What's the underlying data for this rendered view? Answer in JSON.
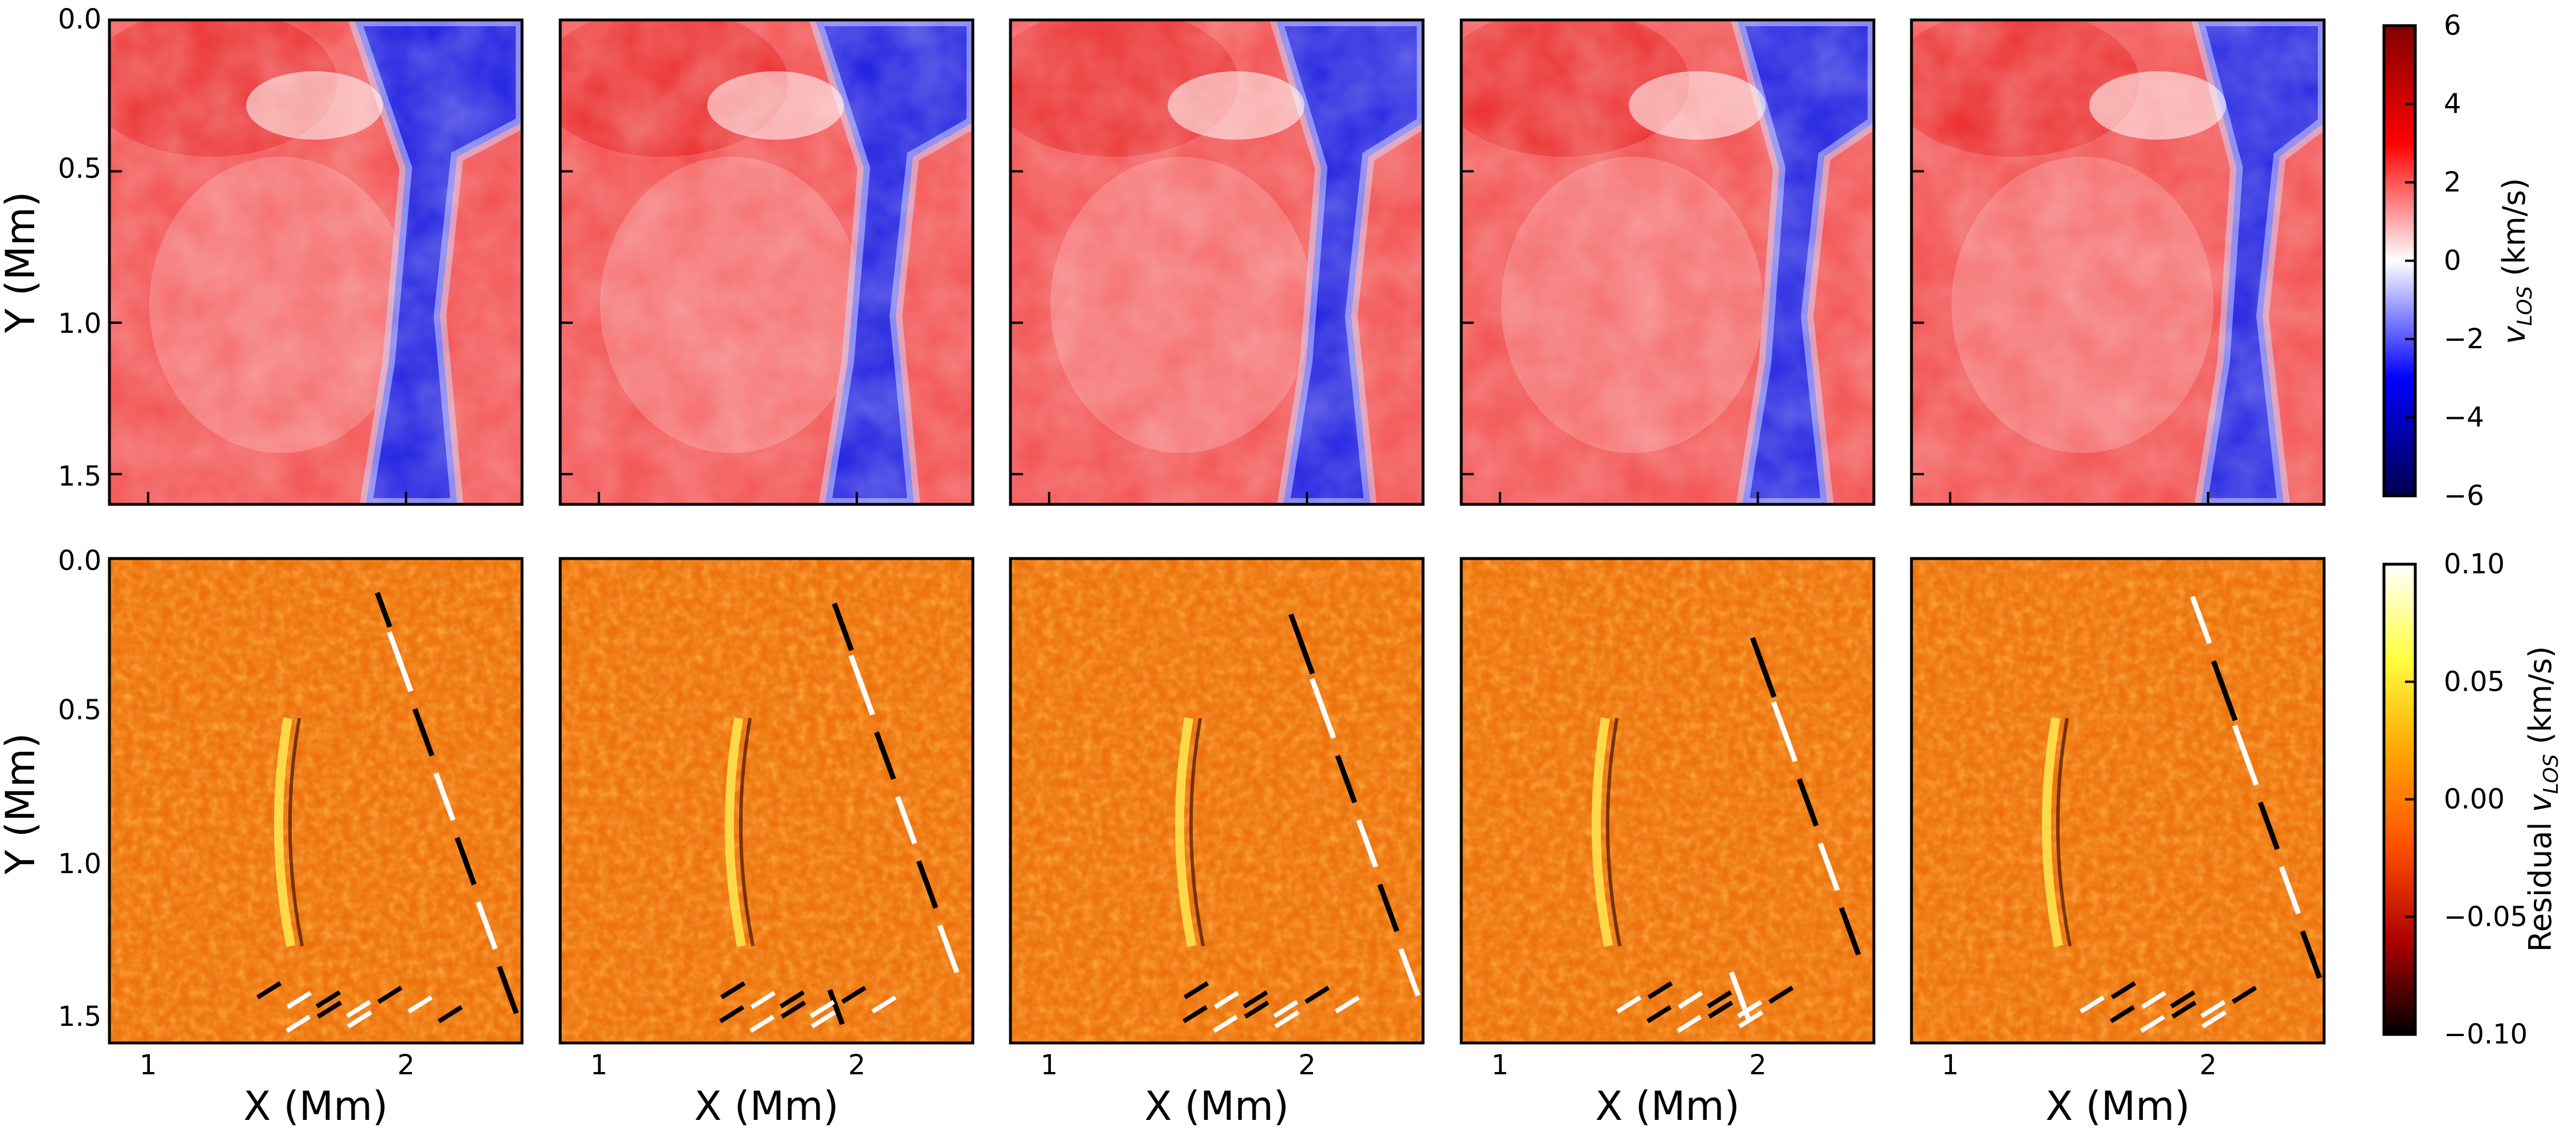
{
  "chart_data": [
    {
      "type": "heatmap",
      "row": "top",
      "panels": 5,
      "description_values": "line-of-sight velocity maps (5 time/inversion panels)",
      "xlabel": "",
      "ylabel": "Y (Mm)",
      "xlim": [
        0.85,
        2.45
      ],
      "ylim": [
        1.6,
        0.0
      ],
      "xticks": [
        1,
        2
      ],
      "yticks": [
        0.0,
        0.5,
        1.0,
        1.5
      ],
      "ytick_labels": [
        "0.0",
        "0.5",
        "1.0",
        "1.5"
      ],
      "colorbar": {
        "label_prefix": "",
        "label_var": "v",
        "label_sub": "LOS",
        "label_unit": "(km/s)",
        "range": [
          -6,
          6
        ],
        "ticks": [
          6,
          4,
          2,
          0,
          -2,
          -4,
          -6
        ],
        "tick_labels": [
          "6",
          "4",
          "2",
          "0",
          "−2",
          "−4",
          "−6"
        ],
        "colormap": "seismic",
        "colors": [
          "#00004c",
          "#0000ff",
          "#ffffff",
          "#ff0000",
          "#800000"
        ]
      },
      "features": {
        "left_region": "positive (red, ~+2 to +3 km/s)",
        "downflow_lane": "negative (blue, ~-4 to -6 km/s) near X 1.9-2.2 Mm"
      }
    },
    {
      "type": "heatmap",
      "row": "bottom",
      "panels": 5,
      "xlabel": "X (Mm)",
      "ylabel": "Y (Mm)",
      "xlim": [
        0.85,
        2.45
      ],
      "ylim": [
        1.6,
        0.0
      ],
      "xticks": [
        1,
        2
      ],
      "xtick_labels": [
        "1",
        "2"
      ],
      "yticks": [
        0.0,
        0.5,
        1.0,
        1.5
      ],
      "ytick_labels": [
        "0.0",
        "0.5",
        "1.0",
        "1.5"
      ],
      "colorbar": {
        "label_prefix": "Residual",
        "label_var": "v",
        "label_sub": "LOS",
        "label_unit": "(km/s)",
        "range": [
          -0.1,
          0.1
        ],
        "ticks": [
          0.1,
          0.05,
          0.0,
          -0.05,
          -0.1
        ],
        "tick_labels": [
          "0.10",
          "0.05",
          "0.00",
          "−0.05",
          "−0.10"
        ],
        "colormap": "hot",
        "colors": [
          "#000000",
          "#b00000",
          "#ff5000",
          "#ffa500",
          "#ffff40",
          "#ffffff"
        ]
      },
      "features": {
        "background": "near zero (orange)",
        "arc_feature": "residual arc near X ~1.5 Mm, Y 0.5-1.1 Mm",
        "edges": "high-contrast residual streaks near X ~2.0-2.4 Mm and bottom edge"
      }
    }
  ]
}
